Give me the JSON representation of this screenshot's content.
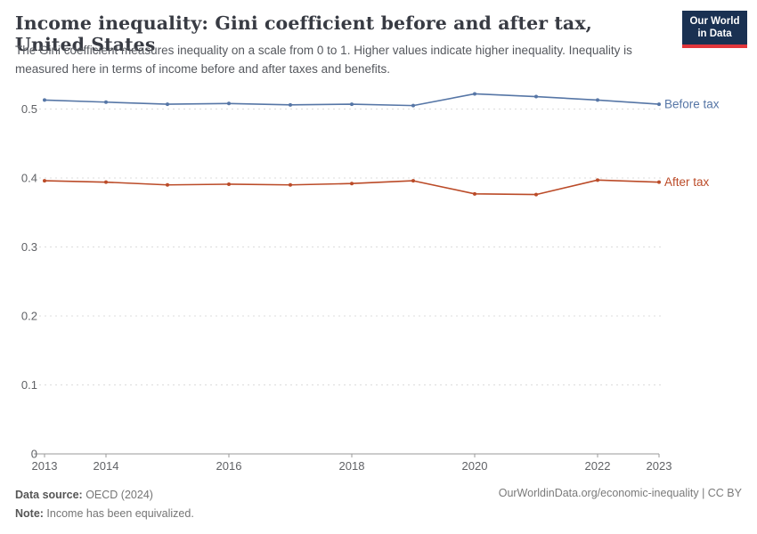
{
  "header": {
    "title": "Income inequality: Gini coefficient before and after tax, United States",
    "subtitle": "The Gini coefficient measures inequality on a scale from 0 to 1. Higher values indicate higher inequality. Inequality is measured here in terms of income before and after taxes and benefits.",
    "logo": {
      "line1": "Our World",
      "line2": "in Data",
      "bg_color": "#1a3152",
      "accent_color": "#e2363b"
    }
  },
  "chart_data": {
    "type": "line",
    "title": "Income inequality: Gini coefficient before and after tax, United States",
    "x": [
      2013,
      2014,
      2015,
      2016,
      2017,
      2018,
      2019,
      2020,
      2021,
      2022,
      2023
    ],
    "series": [
      {
        "name": "Before tax",
        "color": "#5676a6",
        "values": [
          0.513,
          0.51,
          0.507,
          0.508,
          0.506,
          0.507,
          0.505,
          0.522,
          0.518,
          0.513,
          0.507
        ]
      },
      {
        "name": "After tax",
        "color": "#bb4b28",
        "values": [
          0.396,
          0.394,
          0.39,
          0.391,
          0.39,
          0.392,
          0.396,
          0.377,
          0.376,
          0.397,
          0.394
        ]
      }
    ],
    "xlabel": "",
    "ylabel": "",
    "ylim": [
      0,
      0.55
    ],
    "y_ticks": [
      0,
      0.1,
      0.2,
      0.3,
      0.4,
      0.5
    ],
    "x_tick_labels": [
      "2013",
      "2014",
      "2016",
      "2018",
      "2020",
      "2022",
      "2023"
    ],
    "grid": "horizontal-dashed",
    "legend_position": "line-end-labels",
    "tick_color": "#606266",
    "grid_color": "#dcdcdc",
    "axis_color": "#9a9a9a"
  },
  "footer": {
    "source_label": "Data source:",
    "source_value": " OECD (2024)",
    "note_label": "Note:",
    "note_value": " Income has been equivalized.",
    "link": "OurWorldinData.org/economic-inequality | CC BY"
  }
}
